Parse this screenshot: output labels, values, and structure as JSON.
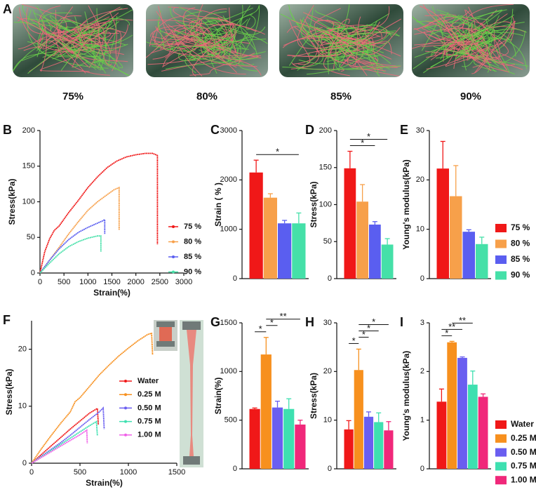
{
  "panel_a": {
    "label": "A",
    "captions": [
      "75%",
      "80%",
      "85%",
      "90%"
    ]
  },
  "chart_data": [
    {
      "type": "line",
      "panel": "B",
      "xlabel": "Strain(%)",
      "ylabel": "Stress(kPa)",
      "xlim": [
        0,
        3000
      ],
      "xticks": [
        0,
        500,
        1000,
        1500,
        2000,
        2500,
        3000
      ],
      "ylim": [
        0,
        200
      ],
      "yticks": [
        0,
        50,
        100,
        150,
        200
      ],
      "series": [
        {
          "name": "75 %",
          "color": "#f01818",
          "x": [
            0,
            100,
            200,
            300,
            400,
            600,
            800,
            1000,
            1200,
            1400,
            1600,
            1800,
            2000,
            2200,
            2350,
            2450,
            2450
          ],
          "values": [
            0,
            30,
            48,
            60,
            66,
            85,
            102,
            120,
            135,
            148,
            157,
            163,
            166,
            168,
            168,
            165,
            40
          ]
        },
        {
          "name": "80 %",
          "color": "#f7a04a",
          "x": [
            0,
            200,
            400,
            600,
            800,
            1000,
            1200,
            1400,
            1550,
            1650,
            1650
          ],
          "values": [
            0,
            18,
            36,
            55,
            72,
            88,
            100,
            110,
            117,
            120,
            60
          ]
        },
        {
          "name": "85 %",
          "color": "#5a5ef0",
          "x": [
            0,
            200,
            400,
            600,
            800,
            1000,
            1200,
            1300,
            1350,
            1350
          ],
          "values": [
            0,
            18,
            34,
            47,
            57,
            64,
            70,
            73,
            75,
            55
          ]
        },
        {
          "name": "90 %",
          "color": "#45e0a8",
          "x": [
            0,
            200,
            400,
            600,
            800,
            1000,
            1200,
            1270,
            1270
          ],
          "values": [
            0,
            14,
            27,
            37,
            44,
            49,
            52,
            52,
            30
          ]
        }
      ]
    },
    {
      "type": "bar",
      "panel": "C",
      "ylabel": "Strain ( % )",
      "ylim": [
        0,
        3000
      ],
      "yticks": [
        0,
        1000,
        2000,
        3000
      ],
      "values": [
        2150,
        1640,
        1120,
        1120
      ],
      "errors": [
        250,
        80,
        60,
        210
      ],
      "colors": [
        "#f01818",
        "#f7a04a",
        "#5a5ef0",
        "#45e0a8"
      ],
      "significance": [
        {
          "from": 0,
          "to": 3,
          "label": "*"
        }
      ]
    },
    {
      "type": "bar",
      "panel": "D",
      "ylabel": "Stress(kPa)",
      "ylim": [
        0,
        200
      ],
      "yticks": [
        0,
        50,
        100,
        150,
        200
      ],
      "values": [
        149,
        104,
        73,
        46
      ],
      "errors": [
        23,
        23,
        4,
        8
      ],
      "colors": [
        "#f01818",
        "#f7a04a",
        "#5a5ef0",
        "#45e0a8"
      ],
      "significance": [
        {
          "from": 0,
          "to": 2,
          "label": "*"
        },
        {
          "from": 0,
          "to": 3,
          "label": "*"
        }
      ]
    },
    {
      "type": "bar",
      "panel": "E",
      "ylabel": "Young's modulus(kPa)",
      "ylim": [
        0,
        30
      ],
      "yticks": [
        0,
        10,
        20,
        30
      ],
      "categories": [
        "75 %",
        "80 %",
        "85 %",
        "90 %"
      ],
      "values": [
        22.3,
        16.7,
        9.5,
        7.0
      ],
      "errors": [
        5.5,
        6.2,
        0.4,
        1.4
      ],
      "colors": [
        "#f01818",
        "#f7a04a",
        "#5a5ef0",
        "#45e0a8"
      ]
    },
    {
      "type": "line",
      "panel": "F",
      "xlabel": "Strain(%)",
      "ylabel": "Stress(kPa)",
      "xlim": [
        0,
        1500
      ],
      "xticks": [
        0,
        500,
        1000,
        1500
      ],
      "ylim": [
        0,
        25
      ],
      "yticks": [
        0,
        10,
        20
      ],
      "series": [
        {
          "name": "Water",
          "color": "#f01818",
          "x": [
            0,
            100,
            200,
            300,
            400,
            500,
            600,
            680,
            690
          ],
          "values": [
            0,
            1.5,
            3,
            4.5,
            6,
            7.4,
            8.8,
            9.6,
            6.8
          ]
        },
        {
          "name": "0.25 M",
          "color": "#f7901e",
          "x": [
            0,
            100,
            200,
            300,
            400,
            450,
            500,
            600,
            700,
            800,
            900,
            1000,
            1100,
            1200,
            1240,
            1250
          ],
          "values": [
            0,
            2.5,
            4.8,
            7,
            9,
            10.8,
            11.5,
            13.5,
            15.5,
            17.2,
            18.8,
            20.2,
            21.5,
            22.6,
            22.8,
            19
          ]
        },
        {
          "name": "0.50 M",
          "color": "#6a5ef0",
          "x": [
            0,
            100,
            200,
            300,
            400,
            500,
            600,
            700,
            740,
            750
          ],
          "values": [
            0,
            1.2,
            2.4,
            3.6,
            4.9,
            6.3,
            7.7,
            9,
            9.7,
            6
          ]
        },
        {
          "name": "0.75 M",
          "color": "#3ee0b0",
          "x": [
            0,
            100,
            200,
            300,
            400,
            500,
            600,
            670,
            680
          ],
          "values": [
            0,
            1.1,
            2.2,
            3.3,
            4.4,
            5.5,
            6.6,
            7.3,
            4.8
          ]
        },
        {
          "name": "1.00 M",
          "color": "#f060e8",
          "x": [
            0,
            100,
            200,
            300,
            400,
            500,
            570,
            575
          ],
          "values": [
            0,
            1,
            2,
            3,
            4,
            5,
            5.8,
            3.5
          ]
        }
      ]
    },
    {
      "type": "bar",
      "panel": "G",
      "ylabel": "Strain(%)",
      "ylim": [
        0,
        1500
      ],
      "yticks": [
        0,
        500,
        1000,
        1500
      ],
      "values": [
        615,
        1175,
        630,
        615,
        455
      ],
      "errors": [
        10,
        175,
        65,
        105,
        45
      ],
      "colors": [
        "#f01818",
        "#f7901e",
        "#6a5ef0",
        "#3ee0b0",
        "#f0287a"
      ],
      "significance": [
        {
          "from": 0,
          "to": 1,
          "label": "*"
        },
        {
          "from": 1,
          "to": 2,
          "label": "*"
        },
        {
          "from": 1,
          "to": 4,
          "label": "**"
        }
      ]
    },
    {
      "type": "bar",
      "panel": "H",
      "ylabel": "Stress(kPa)",
      "ylim": [
        0,
        30
      ],
      "yticks": [
        0,
        10,
        20,
        30
      ],
      "values": [
        8.1,
        20.3,
        10.7,
        9.6,
        7.9
      ],
      "errors": [
        1.8,
        4.3,
        1.0,
        1.9,
        1.8
      ],
      "colors": [
        "#f01818",
        "#f7901e",
        "#6a5ef0",
        "#3ee0b0",
        "#f0287a"
      ],
      "significance": [
        {
          "from": 0,
          "to": 1,
          "label": "*"
        },
        {
          "from": 1,
          "to": 2,
          "label": "*"
        },
        {
          "from": 1,
          "to": 3,
          "label": "*"
        },
        {
          "from": 1,
          "to": 4,
          "label": "*"
        }
      ]
    },
    {
      "type": "bar",
      "panel": "I",
      "ylabel": "Young's modulus(kPa)",
      "ylim": [
        0,
        3
      ],
      "yticks": [
        0,
        1,
        2,
        3
      ],
      "categories": [
        "Water",
        "0.25 M",
        "0.50 M",
        "0.75 M",
        "1.00 M"
      ],
      "values": [
        1.38,
        2.6,
        2.28,
        1.73,
        1.48
      ],
      "errors": [
        0.26,
        0.02,
        0.02,
        0.28,
        0.06
      ],
      "colors": [
        "#f01818",
        "#f7901e",
        "#6a5ef0",
        "#3ee0b0",
        "#f0287a"
      ],
      "significance": [
        {
          "from": 0,
          "to": 1,
          "label": "*"
        },
        {
          "from": 0,
          "to": 2,
          "label": "**"
        },
        {
          "from": 1,
          "to": 3,
          "label": "**"
        }
      ]
    }
  ]
}
